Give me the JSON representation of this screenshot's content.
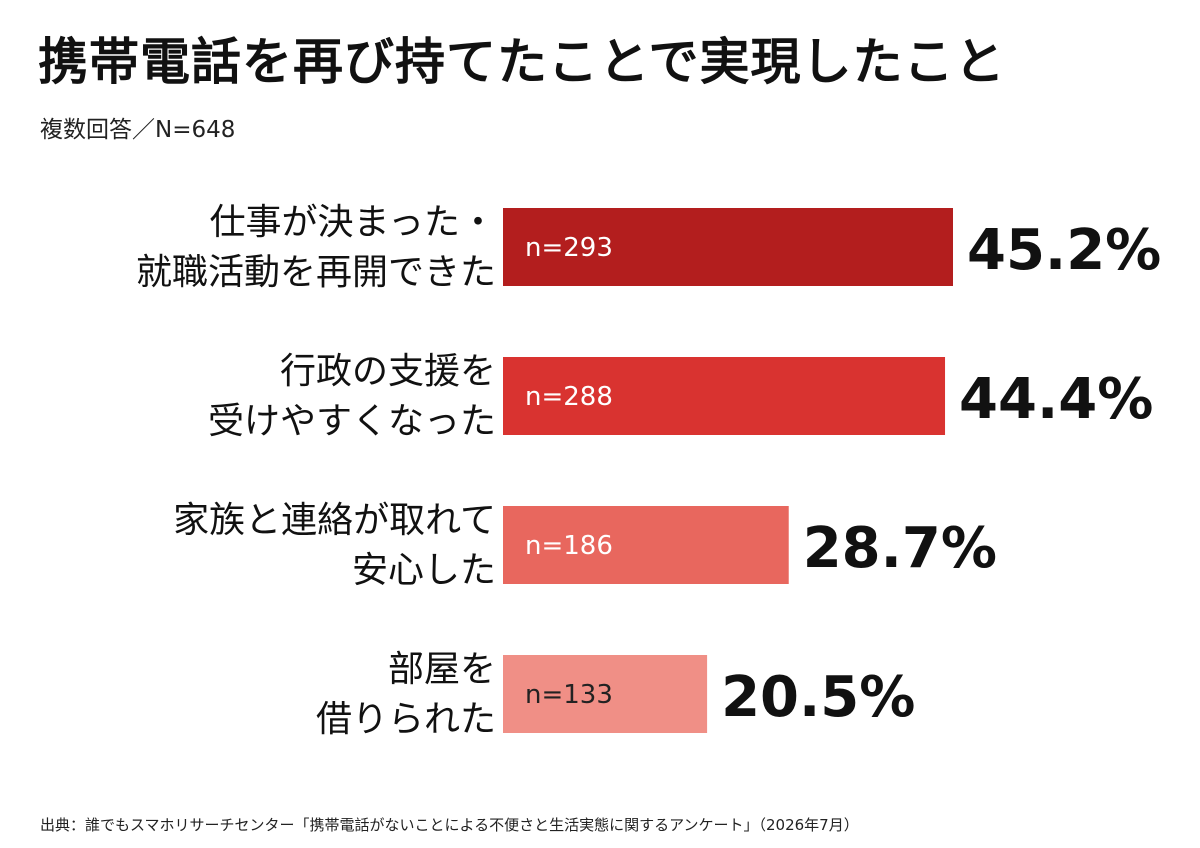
{
  "title": "携帯電話を再び持てたことで実現したこと",
  "subtitle": "複数回答／N=648",
  "source": "出典：誰でもスマホリサーチセンター「携帯電話がないことによる不便さと生活実態に関するアンケート」（2026年7月）",
  "chart_data": {
    "type": "bar",
    "orientation": "horizontal",
    "unit": "%",
    "categories": [
      [
        "仕事が決まった・",
        "就職活動を再開できた"
      ],
      [
        "行政の支援を",
        "受けやすくなった"
      ],
      [
        "家族と連絡が取れて",
        "安心した"
      ],
      [
        "部屋を",
        "借りられた"
      ]
    ],
    "values": [
      45.2,
      44.4,
      28.7,
      20.5
    ],
    "value_labels": [
      "45.2%",
      "44.4%",
      "28.7%",
      "20.5%"
    ],
    "counts": [
      "n=293",
      "n=288",
      "n=186",
      "n=133"
    ],
    "colors": [
      "#B31E1E",
      "#D93330",
      "#E8675E",
      "#F08F86"
    ],
    "count_text_colors": [
      "#ffffff",
      "#ffffff",
      "#ffffff",
      "#222222"
    ]
  }
}
